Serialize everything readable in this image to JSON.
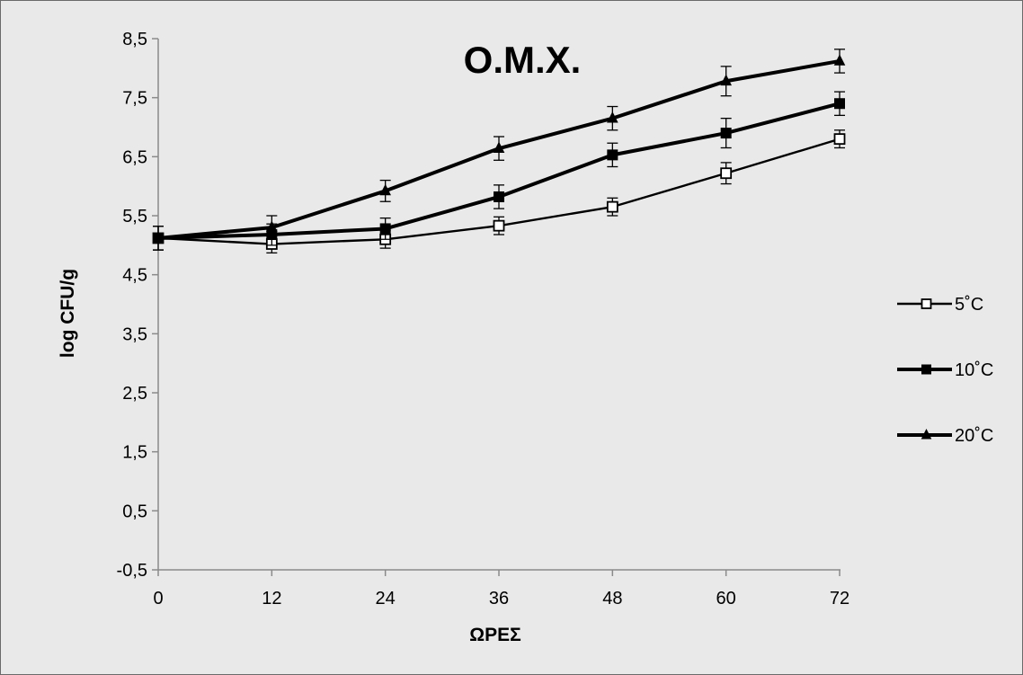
{
  "chart_data": {
    "type": "line",
    "title": "Ο.Μ.Χ.",
    "xlabel": "ΩΡΕΣ",
    "ylabel": "log CFU/g",
    "x": [
      0,
      12,
      24,
      36,
      48,
      60,
      72
    ],
    "x_tick_labels": [
      "0",
      "12",
      "24",
      "36",
      "48",
      "60",
      "72"
    ],
    "ylim": [
      -0.5,
      8.5
    ],
    "y_ticks": [
      -0.5,
      0.5,
      1.5,
      2.5,
      3.5,
      4.5,
      5.5,
      6.5,
      7.5,
      8.5
    ],
    "y_tick_labels": [
      "-0,5",
      "0,5",
      "1,5",
      "2,5",
      "3,5",
      "4,5",
      "5,5",
      "6,5",
      "7,5",
      "8,5"
    ],
    "grid": false,
    "legend_position": "right",
    "series": [
      {
        "name": "5˚C",
        "marker": "open-square",
        "color": "#000000",
        "values": [
          5.12,
          5.02,
          5.1,
          5.33,
          5.65,
          6.22,
          6.8
        ],
        "errors": [
          0.2,
          0.15,
          0.15,
          0.15,
          0.15,
          0.18,
          0.15
        ]
      },
      {
        "name": "10˚C",
        "marker": "filled-square",
        "color": "#000000",
        "values": [
          5.12,
          5.18,
          5.28,
          5.82,
          6.53,
          6.9,
          7.4
        ],
        "errors": [
          0.2,
          0.18,
          0.18,
          0.2,
          0.2,
          0.25,
          0.2
        ]
      },
      {
        "name": "20˚C",
        "marker": "filled-triangle",
        "color": "#000000",
        "values": [
          5.12,
          5.3,
          5.92,
          6.64,
          7.15,
          7.78,
          8.12
        ],
        "errors": [
          0.2,
          0.2,
          0.18,
          0.2,
          0.2,
          0.25,
          0.2
        ]
      }
    ]
  }
}
